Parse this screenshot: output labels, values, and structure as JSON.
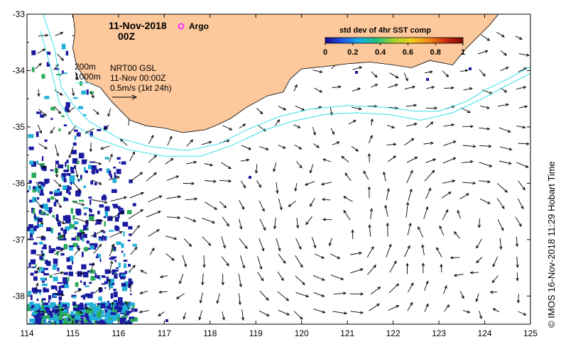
{
  "title": {
    "date": "11-Nov-2018",
    "time": "00Z"
  },
  "legend_argo": {
    "label": "Argo",
    "color": "#ff33ff"
  },
  "info": {
    "contour_200": "200m",
    "contour_1000": "1000m",
    "product": "NRT00 GSL",
    "datetime": "11-Nov 00:00Z",
    "scale": "0.5m/s (1kt 24h)"
  },
  "colorbar": {
    "title": "std dev of 4hr SST comp",
    "ticks": [
      "0",
      "0.2",
      "0.4",
      "0.6",
      "0.8",
      "1"
    ],
    "colors": [
      "#1a0a8c",
      "#1f57e6",
      "#18b0e8",
      "#22c27a",
      "#a6d52a",
      "#f2d01a",
      "#f08a1a",
      "#cc2a10",
      "#7a0a08"
    ]
  },
  "credit": "© IMOS 16-Nov-2018 11:29 Hobart Time",
  "colors": {
    "land": "#fdc89b",
    "contour": "#33e0e8",
    "sst_low": "#1a1aa0",
    "sst_mid": "#22b0d8",
    "sst_green": "#2aaa5a"
  },
  "chart_data": {
    "type": "map",
    "xlim": [
      114,
      125
    ],
    "ylim": [
      -38.5,
      -33
    ],
    "x_ticks": [
      "114",
      "115",
      "116",
      "117",
      "118",
      "119",
      "120",
      "121",
      "122",
      "123",
      "124",
      "125"
    ],
    "y_ticks": [
      "-33",
      "-34",
      "-35",
      "-36",
      "-37",
      "-38"
    ],
    "coastline": [
      [
        115.0,
        -33.0
      ],
      [
        115.05,
        -33.3
      ],
      [
        115.0,
        -33.6
      ],
      [
        115.08,
        -33.9
      ],
      [
        115.3,
        -34.2
      ],
      [
        115.6,
        -34.3
      ],
      [
        115.85,
        -34.55
      ],
      [
        116.25,
        -34.88
      ],
      [
        116.6,
        -34.98
      ],
      [
        117.0,
        -35.02
      ],
      [
        117.4,
        -35.1
      ],
      [
        117.6,
        -35.08
      ],
      [
        117.9,
        -35.05
      ],
      [
        118.2,
        -34.95
      ],
      [
        118.45,
        -34.85
      ],
      [
        118.8,
        -34.65
      ],
      [
        119.25,
        -34.45
      ],
      [
        119.6,
        -34.38
      ],
      [
        119.75,
        -34.15
      ],
      [
        120.0,
        -33.97
      ],
      [
        120.5,
        -33.93
      ],
      [
        121.0,
        -33.88
      ],
      [
        121.5,
        -33.85
      ],
      [
        122.0,
        -33.9
      ],
      [
        122.4,
        -33.95
      ],
      [
        122.8,
        -33.82
      ],
      [
        123.3,
        -33.9
      ],
      [
        123.6,
        -33.6
      ],
      [
        124.1,
        -33.2
      ],
      [
        124.3,
        -33.0
      ]
    ],
    "contour_200m": [
      [
        114.35,
        -33.0
      ],
      [
        114.6,
        -33.6
      ],
      [
        114.75,
        -34.3
      ],
      [
        115.0,
        -34.6
      ],
      [
        115.35,
        -34.9
      ],
      [
        116.0,
        -35.2
      ],
      [
        116.7,
        -35.35
      ],
      [
        117.5,
        -35.42
      ],
      [
        118.2,
        -35.3
      ],
      [
        118.8,
        -35.05
      ],
      [
        119.5,
        -34.82
      ],
      [
        120.2,
        -34.68
      ],
      [
        121.0,
        -34.62
      ],
      [
        121.8,
        -34.65
      ],
      [
        122.5,
        -34.72
      ],
      [
        123.0,
        -34.72
      ],
      [
        123.6,
        -34.55
      ],
      [
        124.0,
        -34.35
      ],
      [
        124.5,
        -34.15
      ],
      [
        125.0,
        -33.93
      ]
    ],
    "contour_1000m": [
      [
        114.3,
        -33.3
      ],
      [
        114.5,
        -33.9
      ],
      [
        114.7,
        -34.55
      ],
      [
        115.0,
        -34.95
      ],
      [
        115.5,
        -35.2
      ],
      [
        116.2,
        -35.4
      ],
      [
        117.0,
        -35.52
      ],
      [
        117.8,
        -35.52
      ],
      [
        118.5,
        -35.32
      ],
      [
        119.2,
        -35.05
      ],
      [
        119.8,
        -34.9
      ],
      [
        120.5,
        -34.78
      ],
      [
        121.2,
        -34.75
      ],
      [
        121.9,
        -34.78
      ],
      [
        122.6,
        -34.88
      ],
      [
        123.3,
        -34.75
      ],
      [
        123.9,
        -34.52
      ],
      [
        124.4,
        -34.3
      ],
      [
        125.0,
        -34.05
      ]
    ],
    "grid_on": false
  }
}
